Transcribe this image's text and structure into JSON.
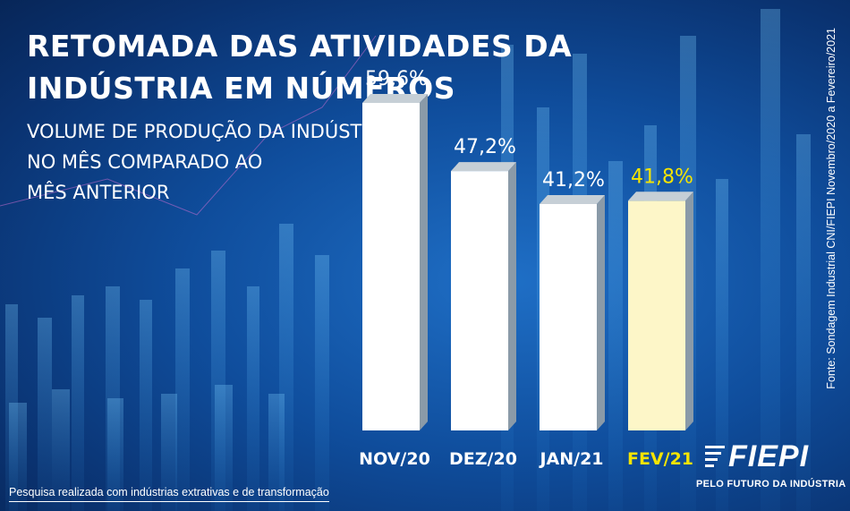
{
  "header": {
    "title_line1": "RETOMADA DAS ATIVIDADES DA",
    "title_line2": "INDÚSTRIA EM NÚMEROS",
    "subtitle_line1": "VOLUME DE PRODUÇÃO DA INDÚSTRIA",
    "subtitle_line2": "NO MÊS COMPARADO AO",
    "subtitle_line3": "MÊS ANTERIOR"
  },
  "source_note": "Fonte: Sondagem Industrial CNI/FIEPI Novembro/2020 a Fevereiro/2021",
  "footnote": "Pesquisa realizada com indústrias extrativas e de transformação",
  "logo": {
    "name": "FIEPI",
    "tagline": "PELO FUTURO DA INDÚSTRIA"
  },
  "colors": {
    "background": "#0f4d9c",
    "bar_default": "#ffffff",
    "bar_highlight": "#fdf6c8",
    "label_default": "#ffffff",
    "label_highlight": "#f5e400"
  },
  "chart_data": {
    "type": "bar",
    "categories": [
      "NOV/20",
      "DEZ/20",
      "JAN/21",
      "FEV/21"
    ],
    "values": [
      59.6,
      47.2,
      41.2,
      41.8
    ],
    "value_labels": [
      "59,6%",
      "47,2%",
      "41,2%",
      "41,8%"
    ],
    "highlight_index": 3,
    "unit": "%",
    "ylim": [
      0,
      65
    ],
    "grid": false,
    "legend": "none",
    "style": "3d-columns"
  }
}
